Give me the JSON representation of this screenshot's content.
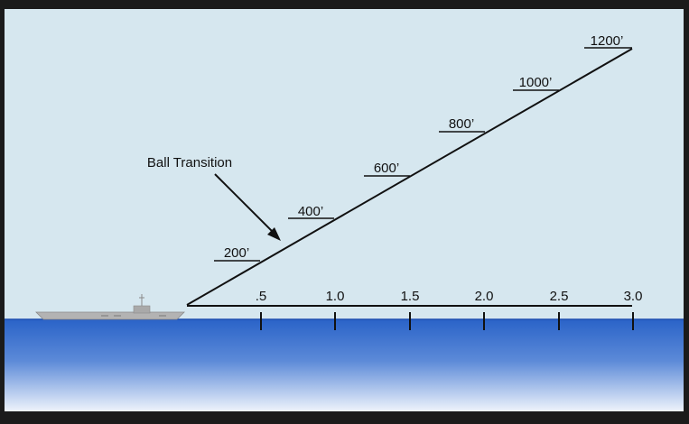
{
  "colors": {
    "sky": "#d6e7ef",
    "sea_top": "#2a63c8",
    "sea_bottom": "#e8eff9",
    "ship": "#bdbdbd",
    "frame": "#1b1b1b"
  },
  "annotation": {
    "text": "Ball Transition"
  },
  "glideslope_labels": [
    "200’",
    "400’",
    "600’",
    "800’",
    "1000’",
    "1200’"
  ],
  "range_ticks": [
    ".5",
    "1.0",
    "1.5",
    "2.0",
    "2.5",
    "3.0"
  ]
}
